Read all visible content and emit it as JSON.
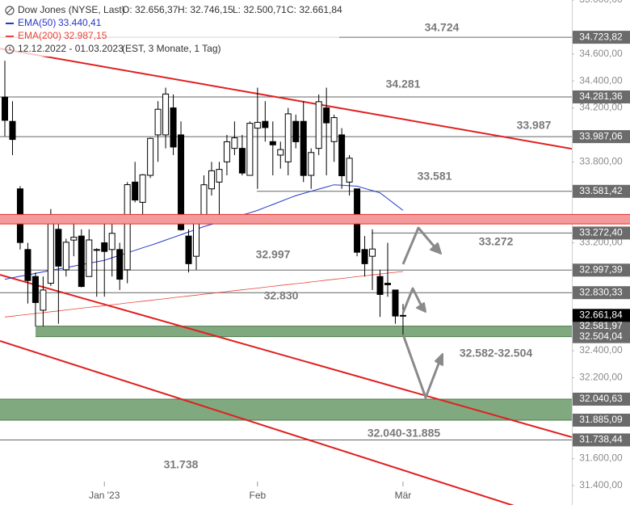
{
  "chart_data": {
    "type": "candlestick",
    "title": "Dow Jones (NYSE, Last)",
    "ohlc_readout": [
      "O: 32.656,37",
      "H: 32.746,15",
      "L: 32.500,71",
      "C: 32.661,84"
    ],
    "period": "12.12.2022 - 01.03.2023",
    "period_note": "(EST, 3 Monate, 1 Tag)",
    "categories": [
      null,
      null,
      null,
      null,
      null,
      null,
      null,
      null,
      null,
      null,
      null,
      null,
      null,
      "Jan '23",
      null,
      null,
      null,
      null,
      null,
      null,
      null,
      null,
      null,
      null,
      null,
      null,
      null,
      null,
      null,
      null,
      null,
      null,
      null,
      "Feb",
      null,
      null,
      null,
      null,
      null,
      null,
      null,
      null,
      null,
      null,
      null,
      null,
      null,
      null,
      null,
      null,
      null,
      null,
      "Mär"
    ],
    "candles": {
      "up_color": "#ffffff",
      "down_color": "#000000",
      "open": [
        34280,
        34100,
        33600,
        33150,
        32950,
        32700,
        32900,
        33300,
        33000,
        33220,
        33250,
        32950,
        33150,
        33200,
        33150,
        33150,
        33000,
        33650,
        33500,
        33700,
        34000,
        34000,
        34200,
        34000,
        33250,
        33100,
        33400,
        33600,
        33650,
        33800,
        33900,
        33900,
        33700,
        34050,
        34100,
        33950,
        33850,
        33800,
        34100,
        34100,
        33700,
        33900,
        34200,
        33950,
        34000,
        33650,
        33600,
        33150,
        33100,
        32950,
        32900,
        32850,
        32656.37
      ],
      "high": [
        34550,
        34250,
        33620,
        33200,
        32980,
        32950,
        33450,
        33350,
        33230,
        33380,
        33300,
        33300,
        33160,
        33400,
        33400,
        33200,
        33650,
        33800,
        33710,
        33980,
        34250,
        34350,
        34300,
        34100,
        33300,
        33400,
        33700,
        33800,
        33800,
        34000,
        34100,
        34000,
        34100,
        34350,
        34250,
        34100,
        33950,
        34200,
        34150,
        34250,
        33900,
        34300,
        34350,
        34150,
        34050,
        33850,
        33600,
        33250,
        33300,
        33000,
        33200,
        32850,
        32746.15
      ],
      "low": [
        33990,
        33850,
        33150,
        32750,
        32580,
        32580,
        32880,
        32600,
        32950,
        33100,
        32870,
        32950,
        32800,
        32800,
        32950,
        32850,
        32900,
        33500,
        33400,
        33680,
        33800,
        33900,
        33850,
        33290,
        32980,
        33000,
        33350,
        33550,
        33400,
        33700,
        33850,
        33700,
        33700,
        33600,
        33950,
        33700,
        33750,
        33700,
        33900,
        33650,
        33600,
        33850,
        33700,
        33800,
        33600,
        33550,
        33100,
        32950,
        32850,
        32650,
        32800,
        32600,
        32500.71
      ],
      "close": [
        34108,
        33966,
        33202,
        32920,
        32757,
        32850,
        33376,
        33027,
        33204,
        33241,
        32876,
        33221,
        33147,
        33136,
        33270,
        32930,
        33631,
        33517,
        33704,
        33974,
        34190,
        34303,
        33910,
        33297,
        33045,
        33375,
        33630,
        33734,
        33744,
        33949,
        33978,
        33717,
        34086,
        34093,
        34054,
        33926,
        33891,
        34156,
        33949,
        33699,
        33869,
        34246,
        34089,
        34128,
        33697,
        33827,
        33130,
        33045,
        33154,
        32817,
        32889,
        32657,
        32661.84
      ]
    },
    "series": [
      {
        "name": "EMA(50)",
        "color": "#2638c8",
        "value_label": "33.440,41",
        "values": [
          32930,
          32941,
          32952,
          32962,
          32973,
          32984,
          32995,
          33006,
          33016,
          33027,
          33038,
          33049,
          33059,
          33070,
          33089,
          33107,
          33126,
          33144,
          33163,
          33181,
          33200,
          33220,
          33240,
          33260,
          33280,
          33300,
          33320,
          33337,
          33354,
          33371,
          33389,
          33406,
          33423,
          33440,
          33462,
          33484,
          33506,
          33528,
          33550,
          33566,
          33582,
          33598,
          33614,
          33630,
          33627,
          33623,
          33620,
          33603,
          33587,
          33570,
          33527,
          33483,
          33440
        ]
      },
      {
        "name": "EMA(200)",
        "color": "#e8463a",
        "value_label": "32.987,15",
        "values": [
          32650,
          32656,
          32663,
          32669,
          32676,
          32682,
          32689,
          32695,
          32702,
          32708,
          32715,
          32721,
          32728,
          32734,
          32741,
          32747,
          32754,
          32760,
          32767,
          32773,
          32780,
          32786,
          32793,
          32799,
          32806,
          32812,
          32819,
          32825,
          32832,
          32838,
          32845,
          32851,
          32858,
          32864,
          32871,
          32877,
          32884,
          32890,
          32897,
          32903,
          32910,
          32916,
          32923,
          32929,
          32936,
          32942,
          32949,
          32955,
          32962,
          32968,
          32975,
          32981,
          32987
        ]
      }
    ],
    "ylim": [
      31256,
      35000
    ],
    "yticks": [
      {
        "value": 31400,
        "label": "31.400,00"
      },
      {
        "value": 31600,
        "label": "31.600,00"
      },
      {
        "value": 32200,
        "label": "32.200,00"
      },
      {
        "value": 32400,
        "label": "32.400,00"
      },
      {
        "value": 33200,
        "label": "33.200,00"
      },
      {
        "value": 33800,
        "label": "33.800,00"
      },
      {
        "value": 34200,
        "label": "34.200,00"
      },
      {
        "value": 34400,
        "label": "34.400,00"
      },
      {
        "value": 34600,
        "label": "34.600,00"
      },
      {
        "value": 35000,
        "label": "35.000,00"
      }
    ],
    "levels": [
      {
        "value": 34723.82,
        "label": "34.723,82",
        "color": "#6b6b6b"
      },
      {
        "value": 34281.36,
        "label": "34.281,36",
        "color": "#6b6b6b"
      },
      {
        "value": 33987.06,
        "label": "33.987,06",
        "color": "#6b6b6b"
      },
      {
        "value": 33581.42,
        "label": "33.581,42",
        "color": "#6b6b6b"
      },
      {
        "value": 33272.4,
        "label": "33.272,40",
        "color": "#6b6b6b"
      },
      {
        "value": 32997.39,
        "label": "32.997,39",
        "color": "#6b6b6b"
      },
      {
        "value": 32830.33,
        "label": "32.830,33",
        "color": "#6b6b6b"
      },
      {
        "value": 32661.84,
        "label": "32.661,84",
        "color": "#000000"
      },
      {
        "value": 31738.44,
        "label": "31.738,44",
        "color": "#6b6b6b"
      }
    ],
    "zones": [
      {
        "upper": 33410,
        "lower": 33340,
        "color": "#f59a9a",
        "border": "#e03030"
      },
      {
        "upper": {
          "value": 32581.97,
          "label": "32.581,97"
        },
        "lower": {
          "value": 32504.04,
          "label": "32.504,04"
        },
        "color": "#80a980",
        "border": "#4d7a4d"
      },
      {
        "upper": {
          "value": 32040.63,
          "label": "32.040,63"
        },
        "lower": {
          "value": 31885.09,
          "label": "31.885,09"
        },
        "color": "#80a980",
        "border": "#4d7a4d"
      }
    ],
    "trendlines": [
      {
        "from": 34640,
        "to": 33897,
        "color": "#e02020"
      },
      {
        "from": 32963,
        "to": 31759,
        "color": "#e02020"
      },
      {
        "from": 32472,
        "to": 31113,
        "color": "#e02020"
      }
    ],
    "annotations": [
      "34.724",
      "34.281",
      "33.987",
      "33.581",
      "33.272",
      "32.997",
      "32.830",
      "32.582-32.504",
      "32.040-31.885",
      "31.738"
    ]
  }
}
